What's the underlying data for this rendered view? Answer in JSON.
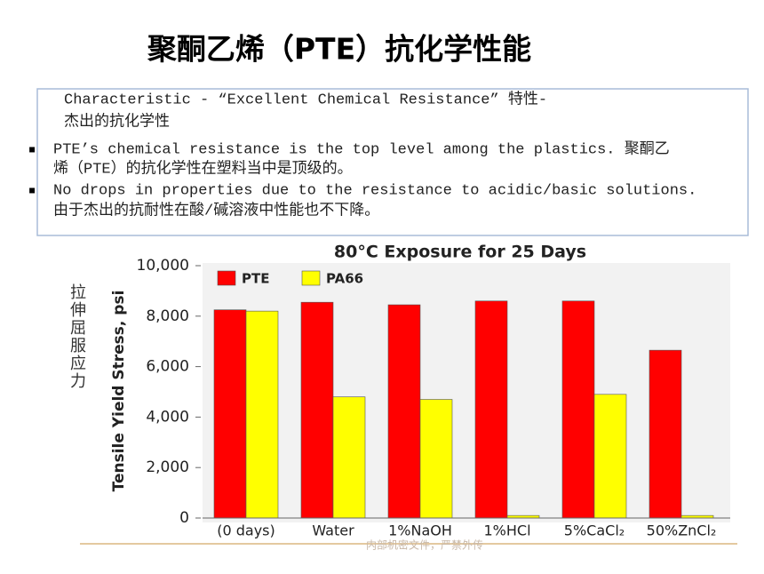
{
  "slide": {
    "title": "聚酮乙烯（PTE）抗化学性能",
    "heading": [
      "Characteristic - “Excellent Chemical Resistance”  特性-",
      "杰出的抗化学性"
    ],
    "bullets": [
      [
        "PTE’s chemical resistance is the top level among the plastics.  聚酮乙",
        "烯（PTE）的抗化学性在塑料当中是顶级的。"
      ],
      [
        "No drops in properties due to the resistance to acidic/basic solutions.",
        "由于杰出的抗耐性在酸/碱溶液中性能也不下降。"
      ]
    ],
    "side_label": "拉伸屈服应力",
    "footer": "内部机密文件，严禁外传"
  },
  "chart_data": {
    "type": "bar",
    "title": "80°C Exposure for 25 Days",
    "y_label": "Tensile Yield Stress, psi",
    "categories": [
      "(0 days)",
      "Water",
      "1%NaOH",
      "1%HCl",
      "5%CaCl₂",
      "50%ZnCl₂"
    ],
    "series": [
      {
        "name": "PTE",
        "color": "#ff0000",
        "values": [
          8250,
          8550,
          8450,
          8600,
          8600,
          6650
        ]
      },
      {
        "name": "PA66",
        "color": "#ffff00",
        "values": [
          8200,
          4800,
          4700,
          100,
          4900,
          100
        ]
      }
    ],
    "ylim": [
      0,
      10000
    ],
    "yticks": [
      0,
      {
        "value": 2000,
        "label": "2,000"
      },
      {
        "value": 4000,
        "label": "4,000"
      },
      {
        "value": 6000,
        "label": "6,000"
      },
      {
        "value": 8000,
        "label": "8,000"
      },
      {
        "value": 10000,
        "label": "10,000"
      }
    ],
    "legend": "top-left"
  }
}
